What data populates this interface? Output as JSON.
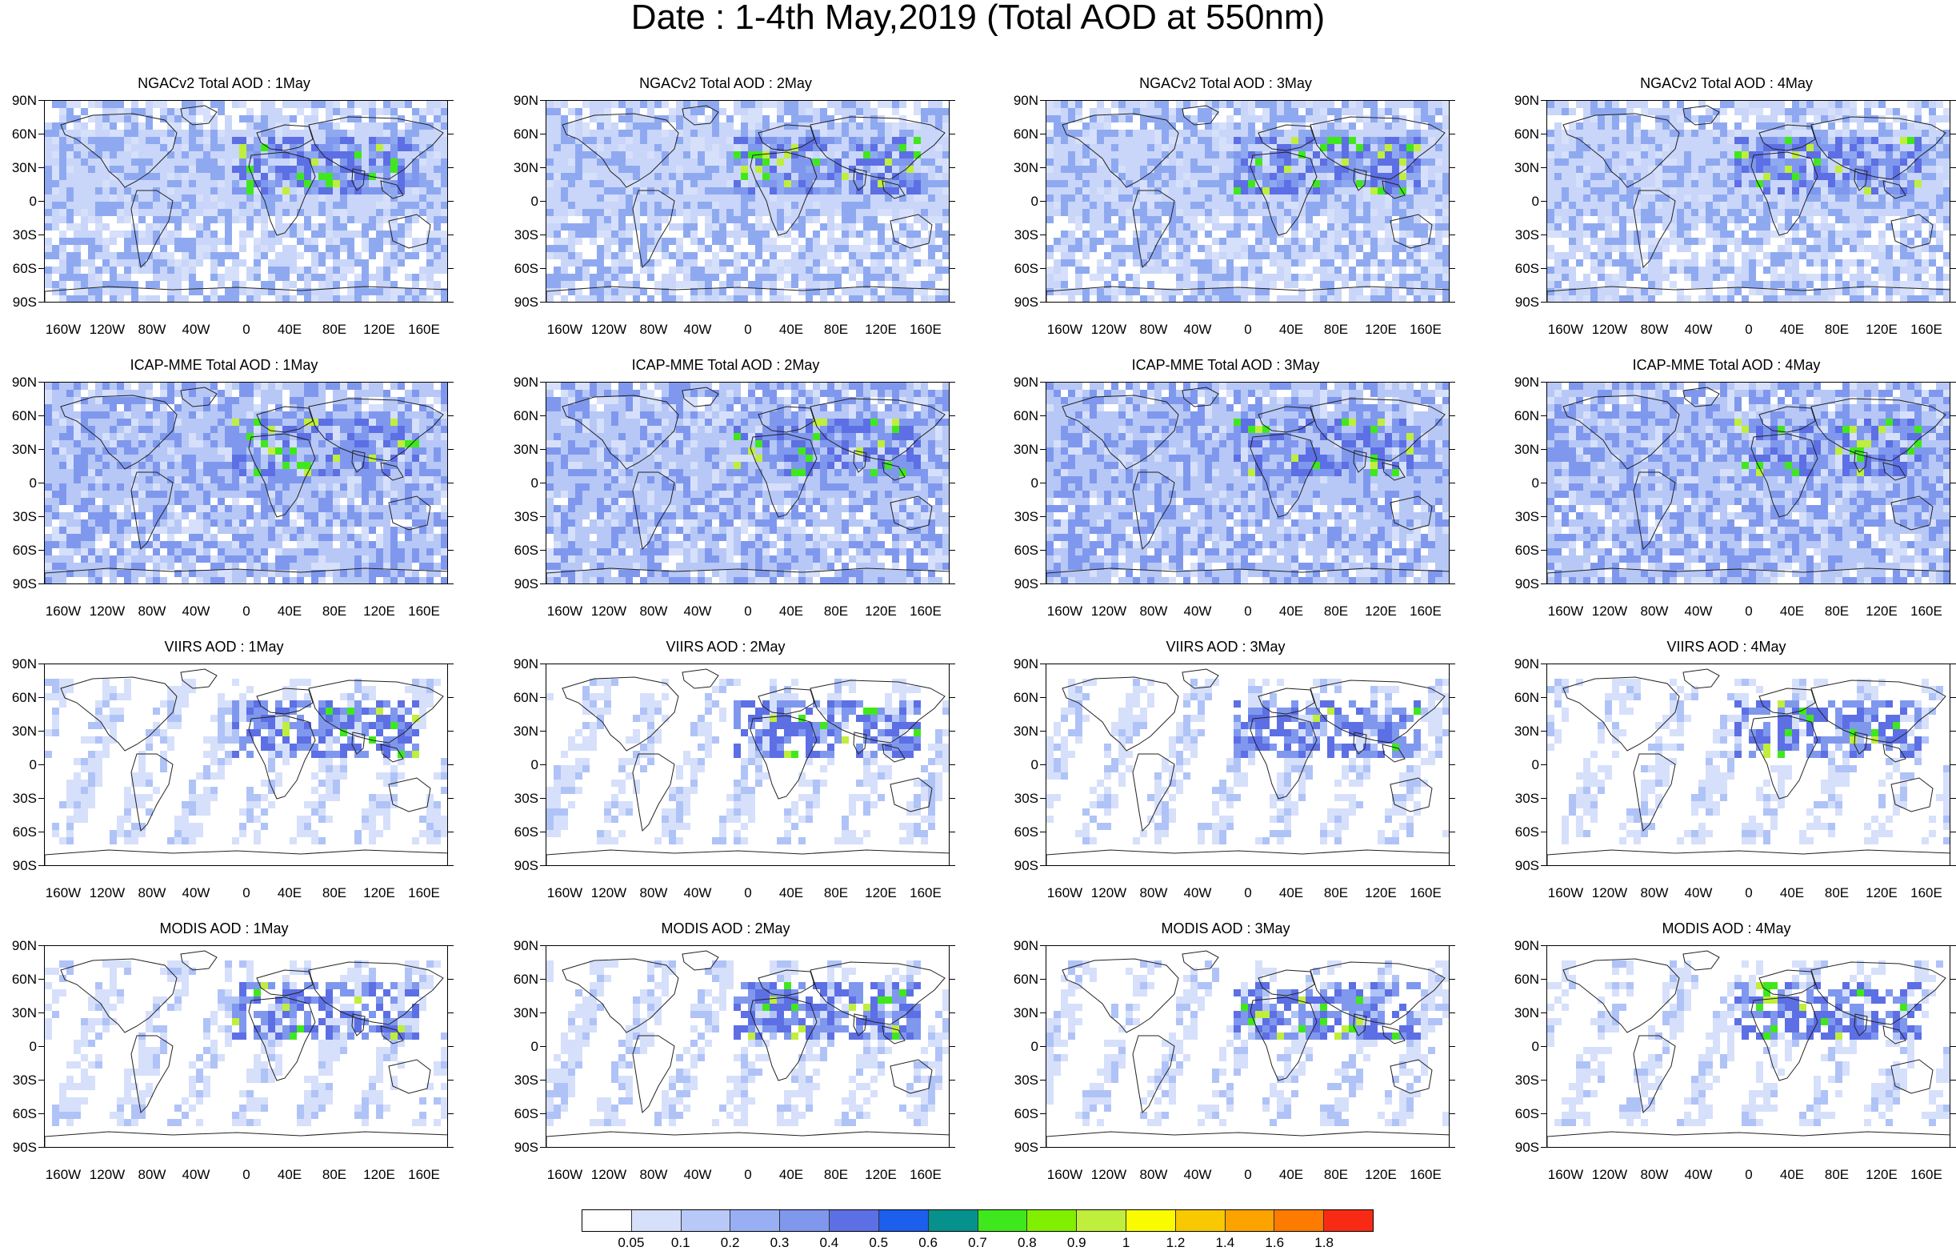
{
  "title": "Date : 1-4th May,2019 (Total AOD at 550nm)",
  "lat_labels": [
    "90N",
    "60N",
    "30N",
    "0",
    "30S",
    "60S",
    "90S"
  ],
  "lon_labels": [
    "160W",
    "120W",
    "80W",
    "40W",
    "0",
    "40E",
    "80E",
    "120E",
    "160E"
  ],
  "rows": [
    {
      "panels": [
        {
          "title": "NGACv2 Total AOD : 1May"
        },
        {
          "title": "NGACv2 Total AOD : 2May"
        },
        {
          "title": "NGACv2 Total AOD : 3May"
        },
        {
          "title": "NGACv2 Total AOD : 4May"
        }
      ]
    },
    {
      "panels": [
        {
          "title": "ICAP-MME Total AOD : 1May"
        },
        {
          "title": "ICAP-MME Total AOD : 2May"
        },
        {
          "title": "ICAP-MME Total AOD : 3May"
        },
        {
          "title": "ICAP-MME Total AOD : 4May"
        }
      ]
    },
    {
      "panels": [
        {
          "title": "VIIRS AOD : 1May"
        },
        {
          "title": "VIIRS AOD : 2May"
        },
        {
          "title": "VIIRS AOD : 3May"
        },
        {
          "title": "VIIRS AOD : 4May"
        }
      ]
    },
    {
      "panels": [
        {
          "title": "MODIS AOD : 1May"
        },
        {
          "title": "MODIS AOD : 2May"
        },
        {
          "title": "MODIS AOD : 3May"
        },
        {
          "title": "MODIS AOD : 4May"
        }
      ]
    }
  ],
  "colorbar": {
    "colors": [
      "#ffffff",
      "#d6e0fb",
      "#b9c9f7",
      "#98b0f3",
      "#7f98ee",
      "#5d6fe4",
      "#1b5fec",
      "#06918c",
      "#3fe81c",
      "#80f000",
      "#bfee3c",
      "#fbfb00",
      "#f8c800",
      "#fca300",
      "#fc7b00",
      "#f92a14"
    ],
    "labels": [
      "0.05",
      "0.1",
      "0.2",
      "0.3",
      "0.4",
      "0.5",
      "0.6",
      "0.7",
      "0.8",
      "0.9",
      "1",
      "1.2",
      "1.4",
      "1.6",
      "1.8"
    ]
  }
}
